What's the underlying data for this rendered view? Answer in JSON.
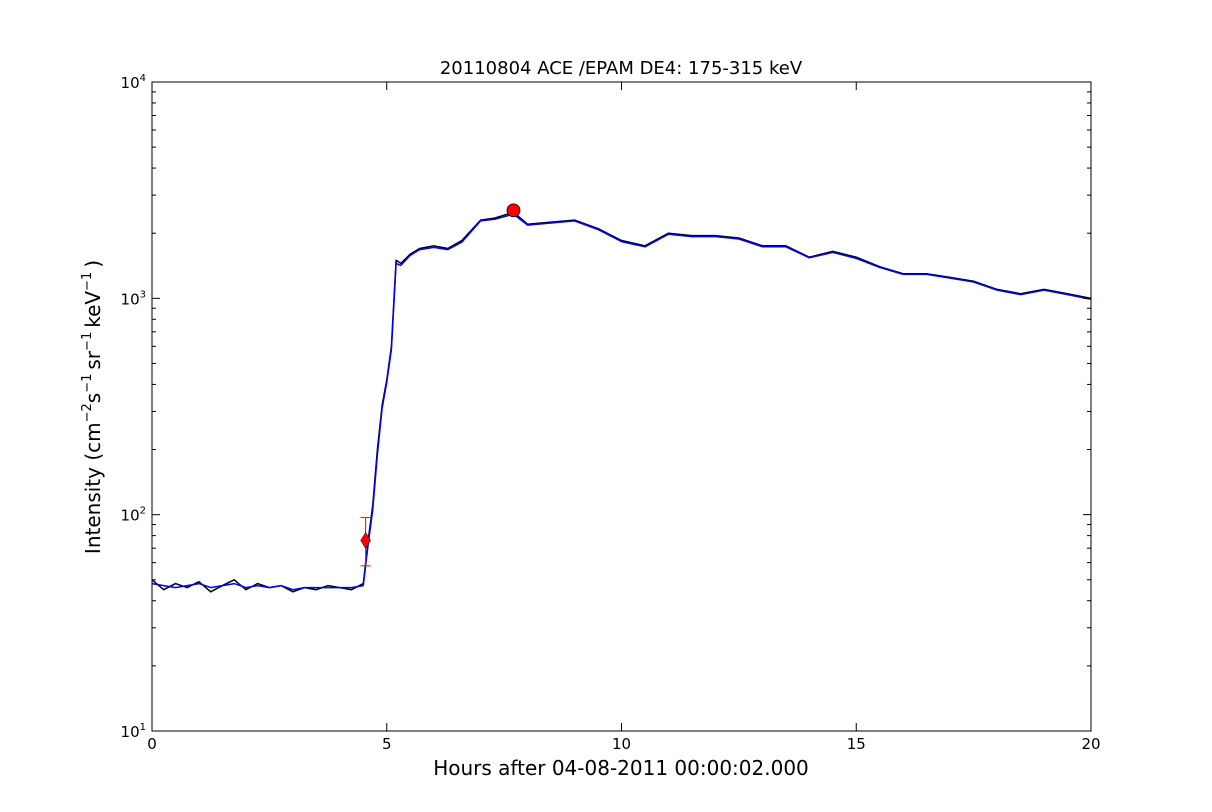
{
  "chart_data": {
    "type": "line",
    "title": "20110804 ACE /EPAM DE4: 175-315 keV",
    "xlabel": "Hours after 04-08-2011 00:00:02.000",
    "ylabel": {
      "prefix": "Intensity (cm",
      "exp1": "−2",
      "mid1": "s",
      "exp2": "−1",
      "mid2": "sr",
      "exp3": "−1",
      "mid3": "keV",
      "exp4": "−1",
      "suffix": ")"
    },
    "xlim": [
      0,
      20
    ],
    "ylim": [
      10,
      10000
    ],
    "yscale": "log",
    "xticks": [
      0,
      5,
      10,
      15,
      20
    ],
    "xtick_labels": [
      "0",
      "5",
      "10",
      "15",
      "20"
    ],
    "yticks": [
      10,
      100,
      1000,
      10000
    ],
    "ytick_labels": [
      {
        "base": "10",
        "exp": "1"
      },
      {
        "base": "10",
        "exp": "2"
      },
      {
        "base": "10",
        "exp": "3"
      },
      {
        "base": "10",
        "exp": "4"
      }
    ],
    "grid": false,
    "series": [
      {
        "color": "#000000",
        "x": [
          0,
          0.25,
          0.5,
          0.75,
          1.0,
          1.25,
          1.5,
          1.75,
          2.0,
          2.25,
          2.5,
          2.75,
          3.0,
          3.25,
          3.5,
          3.75,
          4.0,
          4.25,
          4.5,
          4.6,
          4.7,
          4.8,
          4.9,
          5.0,
          5.1,
          5.2,
          5.3,
          5.5,
          5.7,
          6.0,
          6.3,
          6.6,
          7.0,
          7.3,
          7.7,
          8.0,
          8.5,
          9.0,
          9.5,
          10.0,
          10.5,
          11.0,
          11.5,
          12.0,
          12.5,
          13.0,
          13.5,
          14.0,
          14.5,
          15.0,
          15.5,
          16.0,
          16.5,
          17.0,
          17.5,
          18.0,
          18.5,
          19.0,
          19.5,
          20.0
        ],
        "y": [
          50,
          45,
          48,
          46,
          49,
          44,
          47,
          50,
          45,
          48,
          46,
          47,
          44,
          46,
          45,
          47,
          46,
          45,
          48,
          75,
          110,
          200,
          320,
          420,
          600,
          1500,
          1450,
          1600,
          1700,
          1750,
          1700,
          1850,
          2300,
          2350,
          2500,
          2200,
          2250,
          2300,
          2100,
          1850,
          1750,
          2000,
          1950,
          1950,
          1900,
          1750,
          1750,
          1550,
          1650,
          1550,
          1400,
          1300,
          1300,
          1250,
          1200,
          1100,
          1050,
          1100,
          1050,
          1000
        ]
      },
      {
        "color": "#0000ff",
        "x": [
          0,
          0.25,
          0.5,
          0.75,
          1.0,
          1.25,
          1.5,
          1.75,
          2.0,
          2.25,
          2.5,
          2.75,
          3.0,
          3.25,
          3.5,
          3.75,
          4.0,
          4.25,
          4.5,
          4.6,
          4.7,
          4.8,
          4.9,
          5.0,
          5.1,
          5.2,
          5.3,
          5.5,
          5.7,
          6.0,
          6.3,
          6.6,
          7.0,
          7.3,
          7.7,
          8.0,
          8.5,
          9.0,
          9.5,
          10.0,
          10.5,
          11.0,
          11.5,
          12.0,
          12.5,
          13.0,
          13.5,
          14.0,
          14.5,
          15.0,
          15.5,
          16.0,
          16.5,
          17.0,
          17.5,
          18.0,
          18.5,
          19.0,
          19.5,
          20.0
        ],
        "y": [
          48,
          47,
          46,
          47,
          48,
          46,
          47,
          48,
          46,
          47,
          46,
          47,
          45,
          46,
          46,
          46,
          46,
          46,
          47,
          72,
          105,
          190,
          310,
          410,
          580,
          1450,
          1420,
          1580,
          1680,
          1720,
          1680,
          1820,
          2280,
          2320,
          2450,
          2180,
          2230,
          2280,
          2080,
          1830,
          1730,
          1980,
          1930,
          1930,
          1880,
          1730,
          1730,
          1540,
          1630,
          1530,
          1390,
          1290,
          1290,
          1240,
          1190,
          1090,
          1040,
          1090,
          1040,
          990
        ]
      }
    ],
    "markers": [
      {
        "shape": "diamond",
        "x": 4.55,
        "y": 76,
        "color": "#ff0000",
        "error_range": [
          58,
          97
        ]
      },
      {
        "shape": "circle",
        "x": 7.7,
        "y": 2550,
        "color": "#ff0000"
      }
    ]
  }
}
